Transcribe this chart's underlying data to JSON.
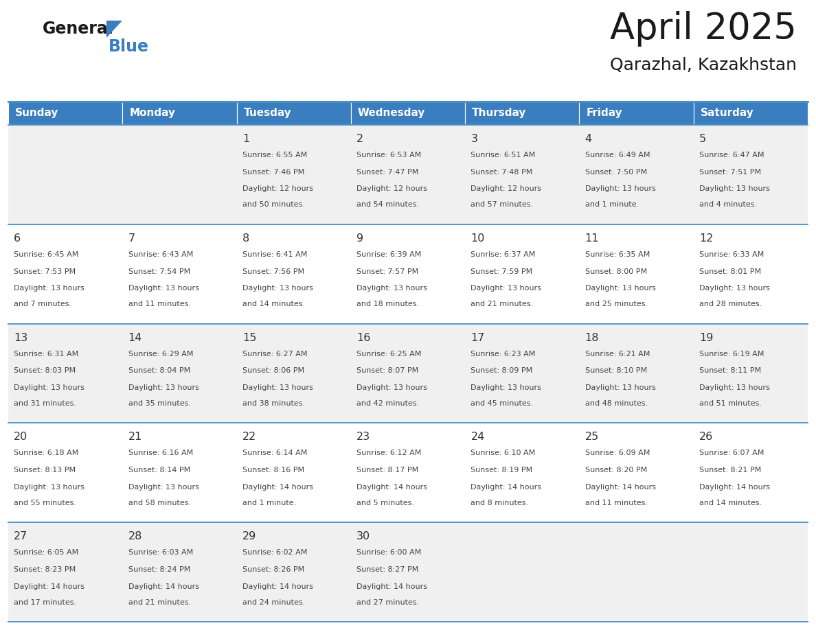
{
  "title": "April 2025",
  "subtitle": "Qarazhal, Kazakhstan",
  "header_bg": "#3a7ebf",
  "header_text_color": "#ffffff",
  "day_names": [
    "Sunday",
    "Monday",
    "Tuesday",
    "Wednesday",
    "Thursday",
    "Friday",
    "Saturday"
  ],
  "cell_bg_even": "#f0f0f0",
  "cell_bg_odd": "#ffffff",
  "cell_border_color": "#4a90c4",
  "text_color": "#444444",
  "num_color": "#333333",
  "weeks": [
    [
      {
        "day": null,
        "sunrise": null,
        "sunset": null,
        "daylight": null
      },
      {
        "day": null,
        "sunrise": null,
        "sunset": null,
        "daylight": null
      },
      {
        "day": 1,
        "sunrise": "6:55 AM",
        "sunset": "7:46 PM",
        "daylight": "12 hours\nand 50 minutes."
      },
      {
        "day": 2,
        "sunrise": "6:53 AM",
        "sunset": "7:47 PM",
        "daylight": "12 hours\nand 54 minutes."
      },
      {
        "day": 3,
        "sunrise": "6:51 AM",
        "sunset": "7:48 PM",
        "daylight": "12 hours\nand 57 minutes."
      },
      {
        "day": 4,
        "sunrise": "6:49 AM",
        "sunset": "7:50 PM",
        "daylight": "13 hours\nand 1 minute."
      },
      {
        "day": 5,
        "sunrise": "6:47 AM",
        "sunset": "7:51 PM",
        "daylight": "13 hours\nand 4 minutes."
      }
    ],
    [
      {
        "day": 6,
        "sunrise": "6:45 AM",
        "sunset": "7:53 PM",
        "daylight": "13 hours\nand 7 minutes."
      },
      {
        "day": 7,
        "sunrise": "6:43 AM",
        "sunset": "7:54 PM",
        "daylight": "13 hours\nand 11 minutes."
      },
      {
        "day": 8,
        "sunrise": "6:41 AM",
        "sunset": "7:56 PM",
        "daylight": "13 hours\nand 14 minutes."
      },
      {
        "day": 9,
        "sunrise": "6:39 AM",
        "sunset": "7:57 PM",
        "daylight": "13 hours\nand 18 minutes."
      },
      {
        "day": 10,
        "sunrise": "6:37 AM",
        "sunset": "7:59 PM",
        "daylight": "13 hours\nand 21 minutes."
      },
      {
        "day": 11,
        "sunrise": "6:35 AM",
        "sunset": "8:00 PM",
        "daylight": "13 hours\nand 25 minutes."
      },
      {
        "day": 12,
        "sunrise": "6:33 AM",
        "sunset": "8:01 PM",
        "daylight": "13 hours\nand 28 minutes."
      }
    ],
    [
      {
        "day": 13,
        "sunrise": "6:31 AM",
        "sunset": "8:03 PM",
        "daylight": "13 hours\nand 31 minutes."
      },
      {
        "day": 14,
        "sunrise": "6:29 AM",
        "sunset": "8:04 PM",
        "daylight": "13 hours\nand 35 minutes."
      },
      {
        "day": 15,
        "sunrise": "6:27 AM",
        "sunset": "8:06 PM",
        "daylight": "13 hours\nand 38 minutes."
      },
      {
        "day": 16,
        "sunrise": "6:25 AM",
        "sunset": "8:07 PM",
        "daylight": "13 hours\nand 42 minutes."
      },
      {
        "day": 17,
        "sunrise": "6:23 AM",
        "sunset": "8:09 PM",
        "daylight": "13 hours\nand 45 minutes."
      },
      {
        "day": 18,
        "sunrise": "6:21 AM",
        "sunset": "8:10 PM",
        "daylight": "13 hours\nand 48 minutes."
      },
      {
        "day": 19,
        "sunrise": "6:19 AM",
        "sunset": "8:11 PM",
        "daylight": "13 hours\nand 51 minutes."
      }
    ],
    [
      {
        "day": 20,
        "sunrise": "6:18 AM",
        "sunset": "8:13 PM",
        "daylight": "13 hours\nand 55 minutes."
      },
      {
        "day": 21,
        "sunrise": "6:16 AM",
        "sunset": "8:14 PM",
        "daylight": "13 hours\nand 58 minutes."
      },
      {
        "day": 22,
        "sunrise": "6:14 AM",
        "sunset": "8:16 PM",
        "daylight": "14 hours\nand 1 minute."
      },
      {
        "day": 23,
        "sunrise": "6:12 AM",
        "sunset": "8:17 PM",
        "daylight": "14 hours\nand 5 minutes."
      },
      {
        "day": 24,
        "sunrise": "6:10 AM",
        "sunset": "8:19 PM",
        "daylight": "14 hours\nand 8 minutes."
      },
      {
        "day": 25,
        "sunrise": "6:09 AM",
        "sunset": "8:20 PM",
        "daylight": "14 hours\nand 11 minutes."
      },
      {
        "day": 26,
        "sunrise": "6:07 AM",
        "sunset": "8:21 PM",
        "daylight": "14 hours\nand 14 minutes."
      }
    ],
    [
      {
        "day": 27,
        "sunrise": "6:05 AM",
        "sunset": "8:23 PM",
        "daylight": "14 hours\nand 17 minutes."
      },
      {
        "day": 28,
        "sunrise": "6:03 AM",
        "sunset": "8:24 PM",
        "daylight": "14 hours\nand 21 minutes."
      },
      {
        "day": 29,
        "sunrise": "6:02 AM",
        "sunset": "8:26 PM",
        "daylight": "14 hours\nand 24 minutes."
      },
      {
        "day": 30,
        "sunrise": "6:00 AM",
        "sunset": "8:27 PM",
        "daylight": "14 hours\nand 27 minutes."
      },
      {
        "day": null,
        "sunrise": null,
        "sunset": null,
        "daylight": null
      },
      {
        "day": null,
        "sunrise": null,
        "sunset": null,
        "daylight": null
      },
      {
        "day": null,
        "sunrise": null,
        "sunset": null,
        "daylight": null
      }
    ]
  ],
  "logo_general_color": "#1a1a1a",
  "logo_blue_color": "#3a7ebf",
  "logo_triangle_color": "#3a7ebf",
  "fig_width": 11.88,
  "fig_height": 9.18,
  "dpi": 100
}
